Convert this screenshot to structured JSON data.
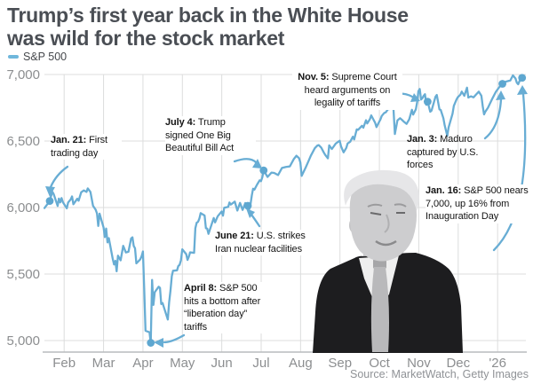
{
  "header": {
    "title": [
      "Trump’s first year back in the White House",
      "was wild for the stock market"
    ],
    "legend_label": "S&P 500"
  },
  "source": "Source: MarketWatch, Getty Images",
  "colors": {
    "line": "#68add4",
    "dot": "#5ea7d0",
    "arrow": "#68add4",
    "title_text": "#4a4e54",
    "axis_text": "#8c8e90",
    "grid": "#dcdddd"
  },
  "annotations": {
    "jan21": {
      "prefix": "Jan. 21:",
      "text": " First trading day"
    },
    "jul4": {
      "prefix": "July 4:",
      "text": " Trump signed One Big Beautiful Bill Act"
    },
    "nov5": {
      "prefix": "Nov. 5:",
      "text": " Supreme Court heard arguments on legality of tariffs"
    },
    "jun21": {
      "prefix": "June 21:",
      "text": " U.S. strikes Iran nuclear facilities"
    },
    "apr8": {
      "prefix": "April 8:",
      "text": " S&P 500 hits a bottom after “liberation day” tariffs"
    },
    "jan3": {
      "prefix": "Jan. 3:",
      "text": " Maduro captured by U.S. forces"
    },
    "jan16": {
      "prefix": "Jan. 16:",
      "text": " S&P 500 nears 7,000, up 16% from Inauguration Day"
    }
  },
  "chart_data": {
    "type": "line",
    "series_name": "S&P 500",
    "title": "Trump’s first year back in the White House was wild for the stock market",
    "x_unit": "calendar days since Jan 21, 2025",
    "x_range_dates": [
      "Jan 17, 2025",
      "Jan 16, 2026"
    ],
    "ylim": [
      4900,
      7050
    ],
    "grid": true,
    "y_ticks": [
      {
        "value": 7000,
        "label": "7,000"
      },
      {
        "value": 6500,
        "label": "6,500"
      },
      {
        "value": 6000,
        "label": "6,000"
      },
      {
        "value": 5500,
        "label": "5,500"
      },
      {
        "value": 5000,
        "label": "5,000"
      }
    ],
    "x_ticks": [
      "Feb",
      "Mar",
      "Apr",
      "May",
      "Jun",
      "Jul",
      "Aug",
      "Sep",
      "Oct",
      "Nov",
      "Dec",
      "'26"
    ],
    "events": [
      {
        "day": 0,
        "value": 6049,
        "date": "Jan. 21, 2025",
        "label": "First trading day"
      },
      {
        "day": 77,
        "value": 4983,
        "date": "April 8, 2025",
        "label": "S&P 500 hits a bottom after “liberation day” tariffs"
      },
      {
        "day": 151,
        "value": 6013,
        "date": "June 21, 2025",
        "label": "U.S. strikes Iran nuclear facilities"
      },
      {
        "day": 163,
        "value": 6279,
        "date": "July 4, 2025",
        "label": "Trump signed One Big Beautiful Bill Act"
      },
      {
        "day": 288,
        "value": 6796,
        "date": "Nov. 5, 2025",
        "label": "Supreme Court heard arguments on legality of tariffs"
      },
      {
        "day": 345,
        "value": 6930,
        "date": "Jan. 3, 2026",
        "label": "Maduro captured by U.S. forces"
      },
      {
        "day": 360,
        "value": 6975,
        "date": "Jan. 16, 2026",
        "label": "S&P 500 nears 7,000, up 16% from Inauguration Day"
      }
    ],
    "points": [
      [
        -4,
        5996
      ],
      [
        0,
        6049
      ],
      [
        1,
        6086
      ],
      [
        2,
        6118
      ],
      [
        3,
        6101
      ],
      [
        6,
        6012
      ],
      [
        7,
        6067
      ],
      [
        8,
        6039
      ],
      [
        9,
        6071
      ],
      [
        10,
        6040
      ],
      [
        13,
        5994
      ],
      [
        14,
        6037
      ],
      [
        16,
        6061
      ],
      [
        17,
        6083
      ],
      [
        18,
        6025
      ],
      [
        21,
        6066
      ],
      [
        22,
        6051
      ],
      [
        24,
        6115
      ],
      [
        26,
        6129
      ],
      [
        28,
        6117
      ],
      [
        29,
        6144
      ],
      [
        31,
        6117
      ],
      [
        33,
        6013
      ],
      [
        35,
        5983
      ],
      [
        36,
        5955
      ],
      [
        37,
        5861
      ],
      [
        38,
        5954
      ],
      [
        41,
        5849
      ],
      [
        42,
        5778
      ],
      [
        43,
        5842
      ],
      [
        44,
        5738
      ],
      [
        45,
        5770
      ],
      [
        48,
        5614
      ],
      [
        49,
        5572
      ],
      [
        50,
        5599
      ],
      [
        51,
        5521
      ],
      [
        52,
        5638
      ],
      [
        54,
        5603
      ],
      [
        56,
        5712
      ],
      [
        58,
        5662
      ],
      [
        60,
        5667
      ],
      [
        62,
        5767
      ],
      [
        63,
        5776
      ],
      [
        64,
        5712
      ],
      [
        65,
        5693
      ],
      [
        66,
        5580
      ],
      [
        69,
        5611
      ],
      [
        70,
        5633
      ],
      [
        71,
        5670
      ],
      [
        72,
        5396
      ],
      [
        73,
        5074
      ],
      [
        76,
        5062
      ],
      [
        77,
        4983
      ],
      [
        78,
        5456
      ],
      [
        79,
        5268
      ],
      [
        80,
        5363
      ],
      [
        83,
        5405
      ],
      [
        84,
        5396
      ],
      [
        85,
        5275
      ],
      [
        86,
        5282
      ],
      [
        90,
        5158
      ],
      [
        91,
        5287
      ],
      [
        92,
        5375
      ],
      [
        93,
        5484
      ],
      [
        94,
        5525
      ],
      [
        97,
        5528
      ],
      [
        98,
        5560
      ],
      [
        99,
        5569
      ],
      [
        100,
        5604
      ],
      [
        101,
        5686
      ],
      [
        104,
        5650
      ],
      [
        105,
        5606
      ],
      [
        106,
        5631
      ],
      [
        107,
        5663
      ],
      [
        110,
        5659
      ],
      [
        111,
        5844
      ],
      [
        112,
        5886
      ],
      [
        113,
        5892
      ],
      [
        114,
        5916
      ],
      [
        115,
        5958
      ],
      [
        118,
        5940
      ],
      [
        119,
        5844
      ],
      [
        120,
        5842
      ],
      [
        121,
        5802
      ],
      [
        125,
        5921
      ],
      [
        126,
        5888
      ],
      [
        127,
        5911
      ],
      [
        128,
        5935
      ],
      [
        131,
        5970
      ],
      [
        132,
        5939
      ],
      [
        133,
        5998
      ],
      [
        136,
        6005
      ],
      [
        137,
        6038
      ],
      [
        138,
        6022
      ],
      [
        141,
        6045
      ],
      [
        143,
        5977
      ],
      [
        145,
        6035
      ],
      [
        147,
        5982
      ],
      [
        149,
        6033
      ],
      [
        151,
        6013
      ],
      [
        152,
        5987
      ],
      [
        153,
        6025
      ],
      [
        154,
        6092
      ],
      [
        155,
        6141
      ],
      [
        156,
        6135
      ],
      [
        158,
        6173
      ],
      [
        160,
        6205
      ],
      [
        161,
        6198
      ],
      [
        162,
        6227
      ],
      [
        163,
        6279
      ],
      [
        166,
        6230
      ],
      [
        169,
        6263
      ],
      [
        171,
        6260
      ],
      [
        174,
        6244
      ],
      [
        177,
        6297
      ],
      [
        180,
        6305
      ],
      [
        183,
        6309
      ],
      [
        186,
        6364
      ],
      [
        188,
        6389
      ],
      [
        190,
        6371
      ],
      [
        191,
        6339
      ],
      [
        192,
        6238
      ],
      [
        195,
        6299
      ],
      [
        197,
        6345
      ],
      [
        199,
        6389
      ],
      [
        202,
        6446
      ],
      [
        204,
        6466
      ],
      [
        205,
        6469
      ],
      [
        207,
        6449
      ],
      [
        209,
        6411
      ],
      [
        210,
        6395
      ],
      [
        212,
        6370
      ],
      [
        213,
        6467
      ],
      [
        215,
        6440
      ],
      [
        218,
        6481
      ],
      [
        221,
        6502
      ],
      [
        222,
        6460
      ],
      [
        224,
        6415
      ],
      [
        226,
        6448
      ],
      [
        227,
        6481
      ],
      [
        229,
        6495
      ],
      [
        231,
        6532
      ],
      [
        232,
        6512
      ],
      [
        234,
        6587
      ],
      [
        235,
        6584
      ],
      [
        238,
        6615
      ],
      [
        239,
        6600
      ],
      [
        241,
        6656
      ],
      [
        242,
        6632
      ],
      [
        244,
        6664
      ],
      [
        245,
        6693
      ],
      [
        247,
        6656
      ],
      [
        248,
        6637
      ],
      [
        249,
        6605
      ],
      [
        251,
        6643
      ],
      [
        252,
        6661
      ],
      [
        253,
        6688
      ],
      [
        255,
        6711
      ],
      [
        256,
        6715
      ],
      [
        258,
        6741
      ],
      [
        259,
        6740
      ],
      [
        261,
        6754
      ],
      [
        262,
        6735
      ],
      [
        263,
        6553
      ],
      [
        265,
        6655
      ],
      [
        267,
        6671
      ],
      [
        269,
        6654
      ],
      [
        270,
        6644
      ],
      [
        272,
        6629
      ],
      [
        274,
        6664
      ],
      [
        276,
        6735
      ],
      [
        277,
        6699
      ],
      [
        279,
        6738
      ],
      [
        280,
        6792
      ],
      [
        281,
        6875
      ],
      [
        282,
        6891
      ],
      [
        283,
        6812
      ],
      [
        284,
        6822
      ],
      [
        285,
        6840
      ],
      [
        286,
        6852
      ],
      [
        287,
        6772
      ],
      [
        288,
        6796
      ],
      [
        290,
        6720
      ],
      [
        291,
        6729
      ],
      [
        294,
        6832
      ],
      [
        295,
        6846
      ],
      [
        297,
        6737
      ],
      [
        298,
        6734
      ],
      [
        300,
        6672
      ],
      [
        301,
        6617
      ],
      [
        303,
        6539
      ],
      [
        304,
        6602
      ],
      [
        307,
        6705
      ],
      [
        308,
        6765
      ],
      [
        310,
        6812
      ],
      [
        311,
        6829
      ],
      [
        313,
        6849
      ],
      [
        314,
        6871
      ],
      [
        316,
        6840
      ],
      [
        318,
        6901
      ],
      [
        319,
        6827
      ],
      [
        321,
        6836
      ],
      [
        323,
        6828
      ],
      [
        325,
        6850
      ],
      [
        327,
        6871
      ],
      [
        329,
        6840
      ],
      [
        330,
        6762
      ],
      [
        331,
        6700
      ],
      [
        332,
        6721
      ],
      [
        334,
        6750
      ],
      [
        337,
        6812
      ],
      [
        340,
        6870
      ],
      [
        343,
        6910
      ],
      [
        345,
        6930
      ],
      [
        347,
        6945
      ],
      [
        349,
        6950
      ],
      [
        351,
        6955
      ],
      [
        353,
        6993
      ],
      [
        355,
        6970
      ],
      [
        356,
        6938
      ],
      [
        357,
        6927
      ],
      [
        358,
        6950
      ],
      [
        360,
        6975
      ]
    ]
  }
}
